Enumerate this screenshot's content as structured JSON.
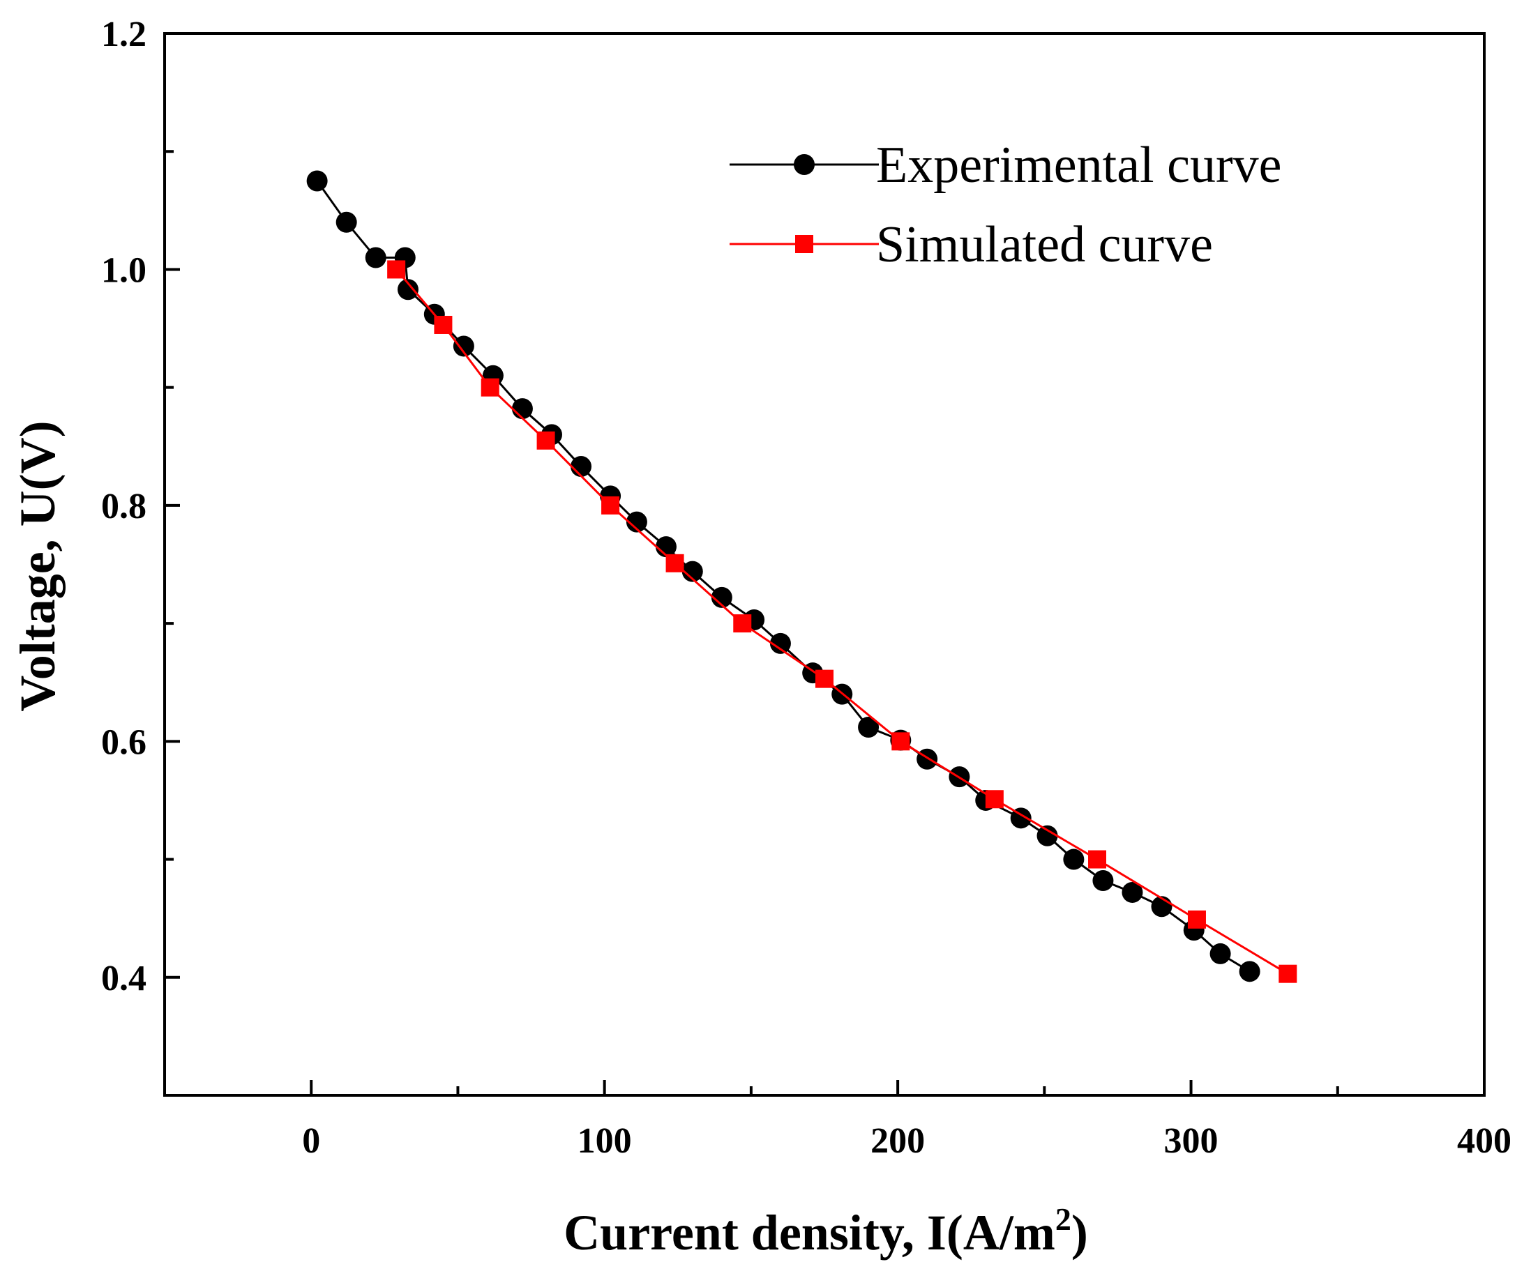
{
  "chart_data": {
    "type": "line",
    "title": "",
    "xlabel": "Current density, I(A/m",
    "xlabel_superscript": "2",
    "xlabel_suffix": ")",
    "ylabel": "Voltage, U(V)",
    "xlim": [
      -50,
      400
    ],
    "ylim": [
      0.3,
      1.2
    ],
    "x_ticks": [
      0,
      100,
      200,
      300,
      400
    ],
    "x_tick_labels": [
      "0",
      "100",
      "200",
      "300",
      "400"
    ],
    "x_minor_ticks": [
      50,
      150,
      250,
      350
    ],
    "y_ticks": [
      0.4,
      0.6,
      0.8,
      1.0,
      1.2
    ],
    "y_tick_labels": [
      "0.4",
      "0.6",
      "0.8",
      "1.0",
      "1.2"
    ],
    "y_minor_ticks": [
      0.5,
      0.7,
      0.9,
      1.1
    ],
    "grid": false,
    "legend_position": "top-right",
    "colors": {
      "experimental": "#000000",
      "simulated": "#ff0000"
    },
    "series": [
      {
        "name": "Experimental curve",
        "marker": "circle",
        "points": [
          [
            2,
            1.075
          ],
          [
            12,
            1.04
          ],
          [
            22,
            1.01
          ],
          [
            32,
            1.01
          ],
          [
            33,
            0.983
          ],
          [
            42,
            0.962
          ],
          [
            52,
            0.935
          ],
          [
            62,
            0.91
          ],
          [
            72,
            0.882
          ],
          [
            82,
            0.86
          ],
          [
            92,
            0.833
          ],
          [
            102,
            0.808
          ],
          [
            111,
            0.786
          ],
          [
            121,
            0.765
          ],
          [
            130,
            0.744
          ],
          [
            140,
            0.722
          ],
          [
            151,
            0.703
          ],
          [
            160,
            0.683
          ],
          [
            171,
            0.658
          ],
          [
            181,
            0.64
          ],
          [
            190,
            0.612
          ],
          [
            201,
            0.601
          ],
          [
            210,
            0.585
          ],
          [
            221,
            0.57
          ],
          [
            230,
            0.55
          ],
          [
            242,
            0.535
          ],
          [
            251,
            0.52
          ],
          [
            260,
            0.5
          ],
          [
            270,
            0.482
          ],
          [
            280,
            0.472
          ],
          [
            290,
            0.46
          ],
          [
            301,
            0.44
          ],
          [
            310,
            0.42
          ],
          [
            320,
            0.405
          ]
        ]
      },
      {
        "name": "Simulated curve",
        "marker": "square",
        "points": [
          [
            29,
            1.0
          ],
          [
            45,
            0.953
          ],
          [
            61,
            0.9
          ],
          [
            80,
            0.855
          ],
          [
            102,
            0.8
          ],
          [
            124,
            0.751
          ],
          [
            147,
            0.7
          ],
          [
            175,
            0.653
          ],
          [
            201,
            0.6
          ],
          [
            233,
            0.551
          ],
          [
            268,
            0.5
          ],
          [
            302,
            0.449
          ],
          [
            333,
            0.403
          ]
        ]
      }
    ]
  }
}
